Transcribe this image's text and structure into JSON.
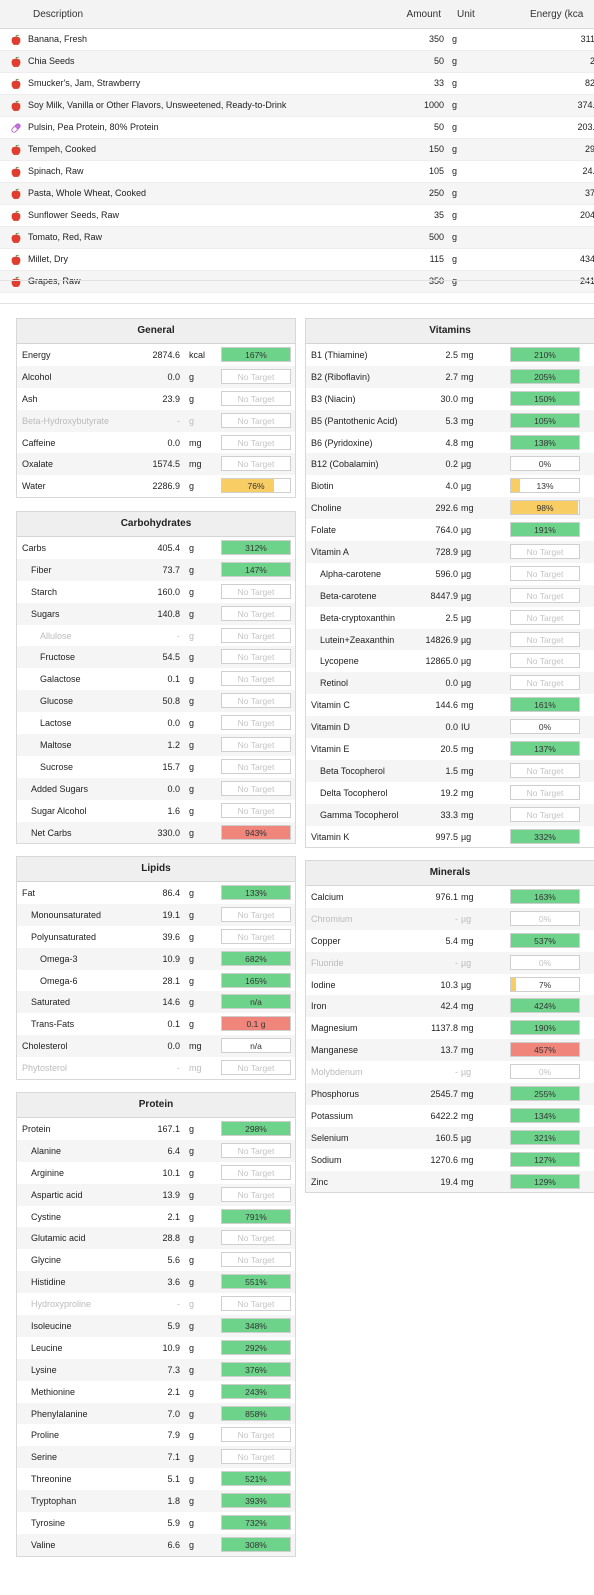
{
  "foods": {
    "columns": {
      "description": "Description",
      "amount": "Amount",
      "unit": "Unit",
      "energy": "Energy (kca"
    },
    "rows": [
      {
        "icon": "apple-icon",
        "description": "Banana, Fresh",
        "amount": "350",
        "unit": "g",
        "energy": "311"
      },
      {
        "icon": "apple-icon",
        "description": "Chia Seeds",
        "amount": "50",
        "unit": "g",
        "energy": "2"
      },
      {
        "icon": "apple-icon",
        "description": "Smucker's, Jam, Strawberry",
        "amount": "33",
        "unit": "g",
        "energy": "82"
      },
      {
        "icon": "apple-icon",
        "description": "Soy Milk, Vanilla or Other Flavors, Unsweetened, Ready-to-Drink",
        "amount": "1000",
        "unit": "g",
        "energy": "374."
      },
      {
        "icon": "capsule-icon",
        "description": "Pulsin, Pea Protein, 80% Protein",
        "amount": "50",
        "unit": "g",
        "energy": "203."
      },
      {
        "icon": "apple-icon",
        "description": "Tempeh, Cooked",
        "amount": "150",
        "unit": "g",
        "energy": "29"
      },
      {
        "icon": "apple-icon",
        "description": "Spinach, Raw",
        "amount": "105",
        "unit": "g",
        "energy": "24."
      },
      {
        "icon": "apple-icon",
        "description": "Pasta, Whole Wheat, Cooked",
        "amount": "250",
        "unit": "g",
        "energy": "37"
      },
      {
        "icon": "apple-icon",
        "description": "Sunflower Seeds, Raw",
        "amount": "35",
        "unit": "g",
        "energy": "204"
      },
      {
        "icon": "apple-icon",
        "description": "Tomato, Red, Raw",
        "amount": "500",
        "unit": "g",
        "energy": ""
      },
      {
        "icon": "apple-icon",
        "description": "Millet, Dry",
        "amount": "115",
        "unit": "g",
        "energy": "434"
      },
      {
        "icon": "apple-icon",
        "description": "Grapes, Raw",
        "amount": "350",
        "unit": "g",
        "energy": "241"
      }
    ]
  },
  "colors": {
    "green": "#6dd38a",
    "yellow": "#f7cd64",
    "red": "#ef857b",
    "border": "#cfcfcf"
  },
  "panels": {
    "general": {
      "title": "General",
      "rows": [
        {
          "label": "Energy",
          "value": "2874.6",
          "unit": "kcal",
          "bar": "167%",
          "fill": 1,
          "color": "green"
        },
        {
          "label": "Alcohol",
          "value": "0.0",
          "unit": "g",
          "bar": "No Target",
          "fill": 0,
          "color": "none"
        },
        {
          "label": "Ash",
          "value": "23.9",
          "unit": "g",
          "bar": "No Target",
          "fill": 0,
          "color": "none"
        },
        {
          "label": "Beta-Hydroxybutyrate",
          "value": "-",
          "unit": "g",
          "bar": "No Target",
          "fill": 0,
          "color": "none",
          "dim": true
        },
        {
          "label": "Caffeine",
          "value": "0.0",
          "unit": "mg",
          "bar": "No Target",
          "fill": 0,
          "color": "none"
        },
        {
          "label": "Oxalate",
          "value": "1574.5",
          "unit": "mg",
          "bar": "No Target",
          "fill": 0,
          "color": "none"
        },
        {
          "label": "Water",
          "value": "2286.9",
          "unit": "g",
          "bar": "76%",
          "fill": 0.76,
          "color": "yellow"
        }
      ]
    },
    "carbohydrates": {
      "title": "Carbohydrates",
      "rows": [
        {
          "label": "Carbs",
          "value": "405.4",
          "unit": "g",
          "bar": "312%",
          "fill": 1,
          "color": "green"
        },
        {
          "label": "Fiber",
          "value": "73.7",
          "unit": "g",
          "bar": "147%",
          "fill": 1,
          "color": "green",
          "indent": 1
        },
        {
          "label": "Starch",
          "value": "160.0",
          "unit": "g",
          "bar": "No Target",
          "fill": 0,
          "color": "none",
          "indent": 1
        },
        {
          "label": "Sugars",
          "value": "140.8",
          "unit": "g",
          "bar": "No Target",
          "fill": 0,
          "color": "none",
          "indent": 1
        },
        {
          "label": "Allulose",
          "value": "-",
          "unit": "g",
          "bar": "No Target",
          "fill": 0,
          "color": "none",
          "indent": 2,
          "dim": true
        },
        {
          "label": "Fructose",
          "value": "54.5",
          "unit": "g",
          "bar": "No Target",
          "fill": 0,
          "color": "none",
          "indent": 2
        },
        {
          "label": "Galactose",
          "value": "0.1",
          "unit": "g",
          "bar": "No Target",
          "fill": 0,
          "color": "none",
          "indent": 2
        },
        {
          "label": "Glucose",
          "value": "50.8",
          "unit": "g",
          "bar": "No Target",
          "fill": 0,
          "color": "none",
          "indent": 2
        },
        {
          "label": "Lactose",
          "value": "0.0",
          "unit": "g",
          "bar": "No Target",
          "fill": 0,
          "color": "none",
          "indent": 2
        },
        {
          "label": "Maltose",
          "value": "1.2",
          "unit": "g",
          "bar": "No Target",
          "fill": 0,
          "color": "none",
          "indent": 2
        },
        {
          "label": "Sucrose",
          "value": "15.7",
          "unit": "g",
          "bar": "No Target",
          "fill": 0,
          "color": "none",
          "indent": 2
        },
        {
          "label": "Added Sugars",
          "value": "0.0",
          "unit": "g",
          "bar": "No Target",
          "fill": 0,
          "color": "none",
          "indent": 1
        },
        {
          "label": "Sugar Alcohol",
          "value": "1.6",
          "unit": "g",
          "bar": "No Target",
          "fill": 0,
          "color": "none",
          "indent": 1
        },
        {
          "label": "Net Carbs",
          "value": "330.0",
          "unit": "g",
          "bar": "943%",
          "fill": 1,
          "color": "red",
          "indent": 1
        }
      ]
    },
    "lipids": {
      "title": "Lipids",
      "rows": [
        {
          "label": "Fat",
          "value": "86.4",
          "unit": "g",
          "bar": "133%",
          "fill": 1,
          "color": "green"
        },
        {
          "label": "Monounsaturated",
          "value": "19.1",
          "unit": "g",
          "bar": "No Target",
          "fill": 0,
          "color": "none",
          "indent": 1
        },
        {
          "label": "Polyunsaturated",
          "value": "39.6",
          "unit": "g",
          "bar": "No Target",
          "fill": 0,
          "color": "none",
          "indent": 1
        },
        {
          "label": "Omega-3",
          "value": "10.9",
          "unit": "g",
          "bar": "682%",
          "fill": 1,
          "color": "green",
          "indent": 2
        },
        {
          "label": "Omega-6",
          "value": "28.1",
          "unit": "g",
          "bar": "165%",
          "fill": 1,
          "color": "green",
          "indent": 2
        },
        {
          "label": "Saturated",
          "value": "14.6",
          "unit": "g",
          "bar": "n/a",
          "fill": 1,
          "color": "green",
          "indent": 1
        },
        {
          "label": "Trans-Fats",
          "value": "0.1",
          "unit": "g",
          "bar": "0.1 g",
          "fill": 1,
          "color": "red",
          "indent": 1
        },
        {
          "label": "Cholesterol",
          "value": "0.0",
          "unit": "mg",
          "bar": "n/a",
          "fill": 0,
          "color": "none",
          "dark": true
        },
        {
          "label": "Phytosterol",
          "value": "-",
          "unit": "mg",
          "bar": "No Target",
          "fill": 0,
          "color": "none",
          "dim": true
        }
      ]
    },
    "protein": {
      "title": "Protein",
      "rows": [
        {
          "label": "Protein",
          "value": "167.1",
          "unit": "g",
          "bar": "298%",
          "fill": 1,
          "color": "green"
        },
        {
          "label": "Alanine",
          "value": "6.4",
          "unit": "g",
          "bar": "No Target",
          "fill": 0,
          "color": "none",
          "indent": 1
        },
        {
          "label": "Arginine",
          "value": "10.1",
          "unit": "g",
          "bar": "No Target",
          "fill": 0,
          "color": "none",
          "indent": 1
        },
        {
          "label": "Aspartic acid",
          "value": "13.9",
          "unit": "g",
          "bar": "No Target",
          "fill": 0,
          "color": "none",
          "indent": 1
        },
        {
          "label": "Cystine",
          "value": "2.1",
          "unit": "g",
          "bar": "791%",
          "fill": 1,
          "color": "green",
          "indent": 1
        },
        {
          "label": "Glutamic acid",
          "value": "28.8",
          "unit": "g",
          "bar": "No Target",
          "fill": 0,
          "color": "none",
          "indent": 1
        },
        {
          "label": "Glycine",
          "value": "5.6",
          "unit": "g",
          "bar": "No Target",
          "fill": 0,
          "color": "none",
          "indent": 1
        },
        {
          "label": "Histidine",
          "value": "3.6",
          "unit": "g",
          "bar": "551%",
          "fill": 1,
          "color": "green",
          "indent": 1
        },
        {
          "label": "Hydroxyproline",
          "value": "-",
          "unit": "g",
          "bar": "No Target",
          "fill": 0,
          "color": "none",
          "indent": 1,
          "dim": true
        },
        {
          "label": "Isoleucine",
          "value": "5.9",
          "unit": "g",
          "bar": "348%",
          "fill": 1,
          "color": "green",
          "indent": 1
        },
        {
          "label": "Leucine",
          "value": "10.9",
          "unit": "g",
          "bar": "292%",
          "fill": 1,
          "color": "green",
          "indent": 1
        },
        {
          "label": "Lysine",
          "value": "7.3",
          "unit": "g",
          "bar": "376%",
          "fill": 1,
          "color": "green",
          "indent": 1
        },
        {
          "label": "Methionine",
          "value": "2.1",
          "unit": "g",
          "bar": "243%",
          "fill": 1,
          "color": "green",
          "indent": 1
        },
        {
          "label": "Phenylalanine",
          "value": "7.0",
          "unit": "g",
          "bar": "858%",
          "fill": 1,
          "color": "green",
          "indent": 1
        },
        {
          "label": "Proline",
          "value": "7.9",
          "unit": "g",
          "bar": "No Target",
          "fill": 0,
          "color": "none",
          "indent": 1
        },
        {
          "label": "Serine",
          "value": "7.1",
          "unit": "g",
          "bar": "No Target",
          "fill": 0,
          "color": "none",
          "indent": 1
        },
        {
          "label": "Threonine",
          "value": "5.1",
          "unit": "g",
          "bar": "521%",
          "fill": 1,
          "color": "green",
          "indent": 1
        },
        {
          "label": "Tryptophan",
          "value": "1.8",
          "unit": "g",
          "bar": "393%",
          "fill": 1,
          "color": "green",
          "indent": 1
        },
        {
          "label": "Tyrosine",
          "value": "5.9",
          "unit": "g",
          "bar": "732%",
          "fill": 1,
          "color": "green",
          "indent": 1
        },
        {
          "label": "Valine",
          "value": "6.6",
          "unit": "g",
          "bar": "308%",
          "fill": 1,
          "color": "green",
          "indent": 1
        }
      ]
    },
    "vitamins": {
      "title": "Vitamins",
      "rows": [
        {
          "label": "B1 (Thiamine)",
          "value": "2.5",
          "unit": "mg",
          "bar": "210%",
          "fill": 1,
          "color": "green"
        },
        {
          "label": "B2 (Riboflavin)",
          "value": "2.7",
          "unit": "mg",
          "bar": "205%",
          "fill": 1,
          "color": "green"
        },
        {
          "label": "B3 (Niacin)",
          "value": "30.0",
          "unit": "mg",
          "bar": "150%",
          "fill": 1,
          "color": "green"
        },
        {
          "label": "B5 (Pantothenic Acid)",
          "value": "5.3",
          "unit": "mg",
          "bar": "105%",
          "fill": 1,
          "color": "green"
        },
        {
          "label": "B6 (Pyridoxine)",
          "value": "4.8",
          "unit": "mg",
          "bar": "138%",
          "fill": 1,
          "color": "green"
        },
        {
          "label": "B12 (Cobalamin)",
          "value": "0.2",
          "unit": "µg",
          "bar": "0%",
          "fill": 0,
          "color": "none",
          "dark": true
        },
        {
          "label": "Biotin",
          "value": "4.0",
          "unit": "µg",
          "bar": "13%",
          "fill": 0.13,
          "color": "yellow"
        },
        {
          "label": "Choline",
          "value": "292.6",
          "unit": "mg",
          "bar": "98%",
          "fill": 0.98,
          "color": "yellow"
        },
        {
          "label": "Folate",
          "value": "764.0",
          "unit": "µg",
          "bar": "191%",
          "fill": 1,
          "color": "green"
        },
        {
          "label": "Vitamin A",
          "value": "728.9",
          "unit": "µg",
          "bar": "No Target",
          "fill": 0,
          "color": "none"
        },
        {
          "label": "Alpha-carotene",
          "value": "596.0",
          "unit": "µg",
          "bar": "No Target",
          "fill": 0,
          "color": "none",
          "indent": 1
        },
        {
          "label": "Beta-carotene",
          "value": "8447.9",
          "unit": "µg",
          "bar": "No Target",
          "fill": 0,
          "color": "none",
          "indent": 1
        },
        {
          "label": "Beta-cryptoxanthin",
          "value": "2.5",
          "unit": "µg",
          "bar": "No Target",
          "fill": 0,
          "color": "none",
          "indent": 1
        },
        {
          "label": "Lutein+Zeaxanthin",
          "value": "14826.9",
          "unit": "µg",
          "bar": "No Target",
          "fill": 0,
          "color": "none",
          "indent": 1
        },
        {
          "label": "Lycopene",
          "value": "12865.0",
          "unit": "µg",
          "bar": "No Target",
          "fill": 0,
          "color": "none",
          "indent": 1
        },
        {
          "label": "Retinol",
          "value": "0.0",
          "unit": "µg",
          "bar": "No Target",
          "fill": 0,
          "color": "none",
          "indent": 1
        },
        {
          "label": "Vitamin C",
          "value": "144.6",
          "unit": "mg",
          "bar": "161%",
          "fill": 1,
          "color": "green"
        },
        {
          "label": "Vitamin D",
          "value": "0.0",
          "unit": "IU",
          "bar": "0%",
          "fill": 0,
          "color": "none",
          "dark": true
        },
        {
          "label": "Vitamin E",
          "value": "20.5",
          "unit": "mg",
          "bar": "137%",
          "fill": 1,
          "color": "green"
        },
        {
          "label": "Beta Tocopherol",
          "value": "1.5",
          "unit": "mg",
          "bar": "No Target",
          "fill": 0,
          "color": "none",
          "indent": 1
        },
        {
          "label": "Delta Tocopherol",
          "value": "19.2",
          "unit": "mg",
          "bar": "No Target",
          "fill": 0,
          "color": "none",
          "indent": 1
        },
        {
          "label": "Gamma Tocopherol",
          "value": "33.3",
          "unit": "mg",
          "bar": "No Target",
          "fill": 0,
          "color": "none",
          "indent": 1
        },
        {
          "label": "Vitamin K",
          "value": "997.5",
          "unit": "µg",
          "bar": "332%",
          "fill": 1,
          "color": "green"
        }
      ]
    },
    "minerals": {
      "title": "Minerals",
      "rows": [
        {
          "label": "Calcium",
          "value": "976.1",
          "unit": "mg",
          "bar": "163%",
          "fill": 1,
          "color": "green"
        },
        {
          "label": "Chromium",
          "value": "-",
          "unit": "µg",
          "bar": "0%",
          "fill": 0,
          "color": "none",
          "dim": true
        },
        {
          "label": "Copper",
          "value": "5.4",
          "unit": "mg",
          "bar": "537%",
          "fill": 1,
          "color": "green"
        },
        {
          "label": "Fluoride",
          "value": "-",
          "unit": "µg",
          "bar": "0%",
          "fill": 0,
          "color": "none",
          "dim": true
        },
        {
          "label": "Iodine",
          "value": "10.3",
          "unit": "µg",
          "bar": "7%",
          "fill": 0.07,
          "color": "yellow"
        },
        {
          "label": "Iron",
          "value": "42.4",
          "unit": "mg",
          "bar": "424%",
          "fill": 1,
          "color": "green"
        },
        {
          "label": "Magnesium",
          "value": "1137.8",
          "unit": "mg",
          "bar": "190%",
          "fill": 1,
          "color": "green"
        },
        {
          "label": "Manganese",
          "value": "13.7",
          "unit": "mg",
          "bar": "457%",
          "fill": 1,
          "color": "red"
        },
        {
          "label": "Molybdenum",
          "value": "-",
          "unit": "µg",
          "bar": "0%",
          "fill": 0,
          "color": "none",
          "dim": true
        },
        {
          "label": "Phosphorus",
          "value": "2545.7",
          "unit": "mg",
          "bar": "255%",
          "fill": 1,
          "color": "green"
        },
        {
          "label": "Potassium",
          "value": "6422.2",
          "unit": "mg",
          "bar": "134%",
          "fill": 1,
          "color": "green"
        },
        {
          "label": "Selenium",
          "value": "160.5",
          "unit": "µg",
          "bar": "321%",
          "fill": 1,
          "color": "green"
        },
        {
          "label": "Sodium",
          "value": "1270.6",
          "unit": "mg",
          "bar": "127%",
          "fill": 1,
          "color": "green"
        },
        {
          "label": "Zinc",
          "value": "19.4",
          "unit": "mg",
          "bar": "129%",
          "fill": 1,
          "color": "green"
        }
      ]
    }
  }
}
